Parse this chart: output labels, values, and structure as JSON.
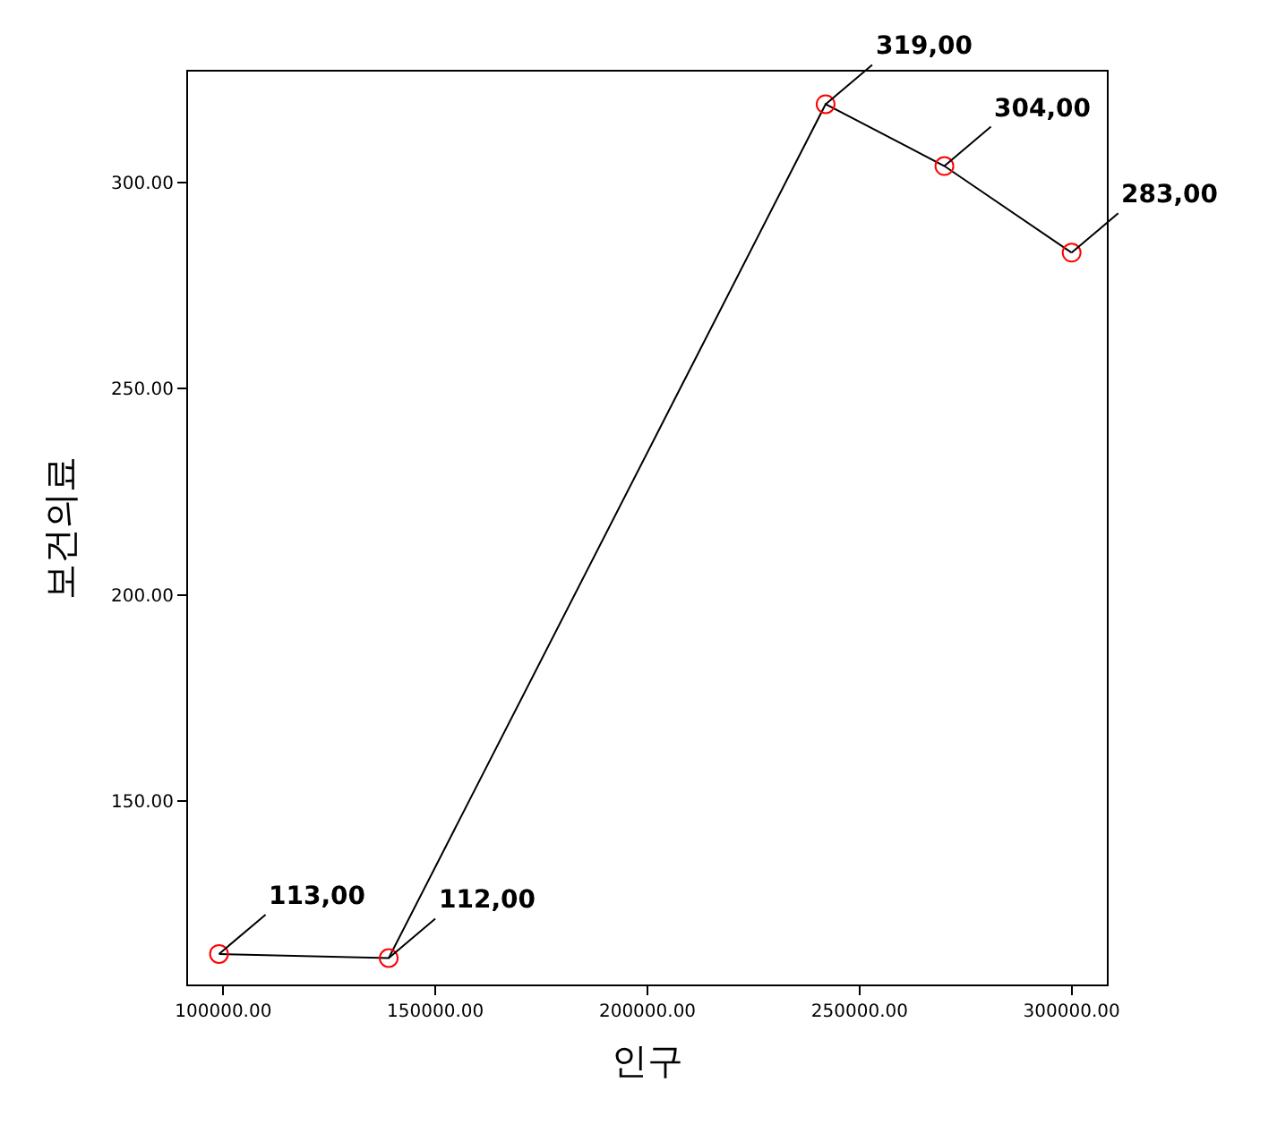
{
  "chart_data": {
    "type": "line",
    "xlabel": "인구",
    "ylabel": "보건의료",
    "x": [
      99000,
      139000,
      242000,
      270000,
      300000
    ],
    "series": [
      {
        "color": "#000000",
        "colors": [
          "#ff0000",
          "#ff0000",
          "#ff0000",
          "#ff0000",
          "#ff0000"
        ],
        "values": [
          113,
          112,
          319,
          304,
          283
        ],
        "value_labels": [
          "113,00",
          "112,00",
          "319,00",
          "304,00",
          "283,00"
        ]
      }
    ],
    "xlim": [
      91700,
      308300
    ],
    "ylim": [
      105.6,
      326.9
    ],
    "xticks": [
      {
        "value": 100000,
        "label": "100000.00"
      },
      {
        "value": 150000,
        "label": "150000.00"
      },
      {
        "value": 200000,
        "label": "200000.00"
      },
      {
        "value": 250000,
        "label": "250000.00"
      },
      {
        "value": 300000,
        "label": "300000.00"
      }
    ],
    "yticks": [
      {
        "value": 150,
        "label": "150.00"
      },
      {
        "value": 200,
        "label": "200.00"
      },
      {
        "value": 250,
        "label": "250.00"
      },
      {
        "value": 300,
        "label": "300.00"
      }
    ],
    "marker": "circle",
    "line_style": "solid"
  }
}
